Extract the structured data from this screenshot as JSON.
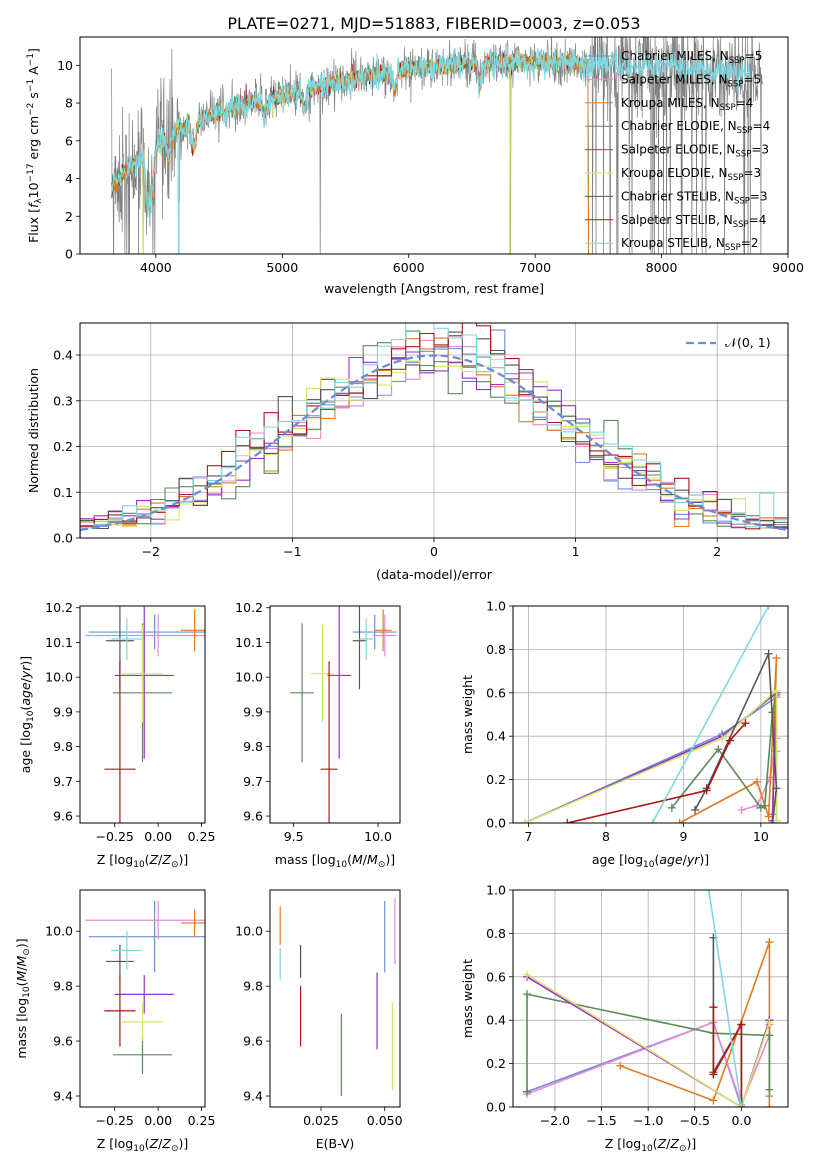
{
  "figure_title": "PLATE=0271, MJD=51883, FIBERID=0003, z=0.053",
  "colors": {
    "chabrier_miles": "#6d8fd6",
    "salpeter_miles": "#e88ad2",
    "kroupa_miles": "#e07a1f",
    "chabrier_elodie": "#5b8a5b",
    "salpeter_elodie": "#9b30c8",
    "kroupa_elodie": "#d8e36a",
    "chabrier_stelib": "#555555",
    "salpeter_stelib": "#b01515",
    "kroupa_stelib": "#7fd8e0",
    "data": "#808080",
    "normal": "#6b8fd6"
  },
  "chart_data": [
    {
      "id": "spectrum",
      "type": "line",
      "xlabel": "wavelength [Angstrom, rest frame]",
      "ylabel": "Flux [f_λ10^{-17} erg cm^{-2} s^{-1} A^{-1}]",
      "xlim": [
        3400,
        9000
      ],
      "ylim": [
        0,
        11.5
      ],
      "xticks": [
        4000,
        5000,
        6000,
        7000,
        8000,
        9000
      ],
      "yticks": [
        0,
        2,
        4,
        6,
        8,
        10
      ],
      "legend_position": "top-right",
      "legend": [
        {
          "label": "Chabrier MILES, N_SSP=5",
          "key": "chabrier_miles"
        },
        {
          "label": "Salpeter MILES, N_SSP=5",
          "key": "salpeter_miles"
        },
        {
          "label": "Kroupa MILES, N_SSP=4",
          "key": "kroupa_miles"
        },
        {
          "label": "Chabrier ELODIE, N_SSP=4",
          "key": "chabrier_elodie"
        },
        {
          "label": "Salpeter ELODIE, N_SSP=3",
          "key": "salpeter_elodie"
        },
        {
          "label": "Kroupa ELODIE, N_SSP=3",
          "key": "kroupa_elodie"
        },
        {
          "label": "Chabrier STELIB, N_SSP=3",
          "key": "chabrier_stelib"
        },
        {
          "label": "Salpeter STELIB, N_SSP=4",
          "key": "salpeter_stelib"
        },
        {
          "label": "Kroupa STELIB, N_SSP=2",
          "key": "kroupa_stelib"
        }
      ],
      "continuum": {
        "x": [
          3650,
          3800,
          3950,
          4100,
          4300,
          4600,
          5000,
          5500,
          6000,
          6500,
          7000,
          7400,
          8000,
          8600,
          8800
        ],
        "y": [
          3.6,
          4.6,
          5.4,
          6.3,
          7.0,
          7.7,
          8.4,
          9.2,
          9.8,
          10.1,
          10.2,
          10.1,
          9.9,
          9.6,
          9.5
        ]
      },
      "model_range": [
        3650,
        7420
      ],
      "stelib_range": [
        3650,
        8700
      ]
    },
    {
      "id": "residuals",
      "type": "bar",
      "xlabel": "(data-model)/error",
      "ylabel": "Normed distribution",
      "xlim": [
        -2.5,
        2.5
      ],
      "ylim": [
        0,
        0.47
      ],
      "xticks": [
        -2,
        -1,
        0,
        1,
        2
      ],
      "yticks": [
        0,
        0.1,
        0.2,
        0.3,
        0.4
      ],
      "legend_label": "𝒩(0, 1)",
      "legend_position": "top-right",
      "bin_edges": [
        -2.5,
        2.5
      ],
      "bins": 50,
      "normal_curve": {
        "mean": 0,
        "sigma": 1
      }
    },
    {
      "id": "age_vs_z",
      "type": "scatter",
      "xlabel": "Z [log10(Z/Z☉)]",
      "ylabel": "age  [log10(age/yr)]",
      "xlim": [
        -0.45,
        0.27
      ],
      "ylim": [
        9.58,
        10.205
      ],
      "xticks": [
        -0.25,
        0.0,
        0.25
      ],
      "yticks": [
        9.6,
        9.7,
        9.8,
        9.9,
        10.0,
        10.1,
        10.2
      ],
      "points": [
        {
          "key": "chabrier_miles",
          "x": -0.02,
          "y": 10.13,
          "xerr": 0.38,
          "yerr": 0.05
        },
        {
          "key": "salpeter_miles",
          "x": 0.0,
          "y": 10.12,
          "xerr": 0.42,
          "yerr": 0.06
        },
        {
          "key": "kroupa_miles",
          "x": 0.21,
          "y": 10.135,
          "xerr": 0.08,
          "yerr": 0.06
        },
        {
          "key": "chabrier_elodie",
          "x": -0.09,
          "y": 9.955,
          "xerr": 0.17,
          "yerr": 0.2
        },
        {
          "key": "salpeter_elodie",
          "x": -0.08,
          "y": 10.005,
          "xerr": 0.17,
          "yerr": 0.24
        },
        {
          "key": "kroupa_elodie",
          "x": -0.09,
          "y": 10.01,
          "xerr": 0.12,
          "yerr": 0.14
        },
        {
          "key": "chabrier_stelib",
          "x": -0.22,
          "y": 10.105,
          "xerr": 0.08,
          "yerr": 0.14
        },
        {
          "key": "salpeter_stelib",
          "x": -0.22,
          "y": 9.735,
          "xerr": 0.09,
          "yerr": 0.31
        },
        {
          "key": "kroupa_stelib",
          "x": -0.18,
          "y": 10.11,
          "xerr": 0.09,
          "yerr": 0.06
        }
      ]
    },
    {
      "id": "age_vs_mass",
      "type": "scatter",
      "xlabel": "mass [log10(M/M☉)]",
      "ylabel": "",
      "xlim": [
        9.36,
        10.13
      ],
      "ylim": [
        9.58,
        10.205
      ],
      "xticks": [
        9.5,
        10.0
      ],
      "yticks": [
        9.6,
        9.7,
        9.8,
        9.9,
        10.0,
        10.1,
        10.2
      ],
      "points": [
        {
          "key": "chabrier_miles",
          "x": 9.98,
          "y": 10.13,
          "xerr": 0.13,
          "yerr": 0.05
        },
        {
          "key": "salpeter_miles",
          "x": 10.04,
          "y": 10.12,
          "xerr": 0.07,
          "yerr": 0.06
        },
        {
          "key": "kroupa_miles",
          "x": 10.03,
          "y": 10.135,
          "xerr": 0.05,
          "yerr": 0.06
        },
        {
          "key": "chabrier_elodie",
          "x": 9.55,
          "y": 9.955,
          "xerr": 0.07,
          "yerr": 0.2
        },
        {
          "key": "salpeter_elodie",
          "x": 9.77,
          "y": 10.005,
          "xerr": 0.07,
          "yerr": 0.24
        },
        {
          "key": "kroupa_elodie",
          "x": 9.67,
          "y": 10.01,
          "xerr": 0.07,
          "yerr": 0.14
        },
        {
          "key": "chabrier_stelib",
          "x": 9.89,
          "y": 10.105,
          "xerr": 0.04,
          "yerr": 0.14
        },
        {
          "key": "salpeter_stelib",
          "x": 9.71,
          "y": 9.735,
          "xerr": 0.05,
          "yerr": 0.31
        },
        {
          "key": "kroupa_stelib",
          "x": 9.93,
          "y": 10.11,
          "xerr": 0.04,
          "yerr": 0.06
        }
      ]
    },
    {
      "id": "weight_vs_age",
      "type": "line",
      "xlabel": "age  [log10(age/yr)]",
      "ylabel": "mass weight",
      "xlim": [
        6.8,
        10.35
      ],
      "ylim": [
        0,
        1.0
      ],
      "xticks": [
        7,
        8,
        9,
        10
      ],
      "yticks": [
        0.0,
        0.2,
        0.4,
        0.6,
        0.8,
        1.0
      ],
      "series": [
        {
          "key": "chabrier_miles",
          "x": [
            6.95,
            9.5,
            10.2,
            10.2
          ],
          "y": [
            0.0,
            0.41,
            0.58,
            0.01
          ]
        },
        {
          "key": "salpeter_miles",
          "x": [
            9.75,
            9.95,
            10.12,
            10.2,
            10.2
          ],
          "y": [
            0.06,
            0.08,
            0.21,
            0.39,
            0.33
          ]
        },
        {
          "key": "kroupa_miles",
          "x": [
            8.95,
            9.95,
            10.1,
            10.2,
            10.15
          ],
          "y": [
            0.0,
            0.19,
            0.03,
            0.76,
            0.04
          ]
        },
        {
          "key": "chabrier_elodie",
          "x": [
            8.85,
            9.45,
            10.0,
            10.05,
            10.15,
            10.2
          ],
          "y": [
            0.07,
            0.34,
            0.07,
            0.08,
            0.51,
            0.59
          ]
        },
        {
          "key": "salpeter_elodie",
          "x": [
            6.95,
            9.5,
            10.2,
            10.15
          ],
          "y": [
            0.0,
            0.4,
            0.6,
            0.01
          ]
        },
        {
          "key": "kroupa_elodie",
          "x": [
            6.95,
            9.5,
            10.2,
            10.2
          ],
          "y": [
            0.0,
            0.39,
            0.61,
            0.01
          ]
        },
        {
          "key": "chabrier_stelib",
          "x": [
            9.15,
            9.3,
            10.1,
            10.2,
            10.15
          ],
          "y": [
            0.06,
            0.16,
            0.78,
            0.16,
            0.0
          ]
        },
        {
          "key": "salpeter_stelib",
          "x": [
            7.5,
            9.3,
            9.6,
            9.8
          ],
          "y": [
            0.0,
            0.15,
            0.38,
            0.46
          ]
        },
        {
          "key": "kroupa_stelib",
          "x": [
            8.6,
            10.1
          ],
          "y": [
            0.0,
            1.0
          ]
        }
      ]
    },
    {
      "id": "mass_vs_z",
      "type": "scatter",
      "xlabel": "Z [log10(Z/Z☉)]",
      "ylabel": "mass [log10(M/M☉)]",
      "xlim": [
        -0.45,
        0.27
      ],
      "ylim": [
        9.36,
        10.15
      ],
      "xticks": [
        -0.25,
        0.0,
        0.25
      ],
      "yticks": [
        9.4,
        9.6,
        9.8,
        10.0
      ],
      "points": [
        {
          "key": "chabrier_miles",
          "x": -0.02,
          "y": 9.98,
          "xerr": 0.38,
          "yerr": 0.13
        },
        {
          "key": "salpeter_miles",
          "x": 0.0,
          "y": 10.04,
          "xerr": 0.42,
          "yerr": 0.07
        },
        {
          "key": "kroupa_miles",
          "x": 0.21,
          "y": 10.03,
          "xerr": 0.08,
          "yerr": 0.05
        },
        {
          "key": "chabrier_elodie",
          "x": -0.09,
          "y": 9.55,
          "xerr": 0.17,
          "yerr": 0.07
        },
        {
          "key": "salpeter_elodie",
          "x": -0.08,
          "y": 9.77,
          "xerr": 0.17,
          "yerr": 0.07
        },
        {
          "key": "kroupa_elodie",
          "x": -0.09,
          "y": 9.67,
          "xerr": 0.12,
          "yerr": 0.07
        },
        {
          "key": "chabrier_stelib",
          "x": -0.22,
          "y": 9.89,
          "xerr": 0.08,
          "yerr": 0.06
        },
        {
          "key": "salpeter_stelib",
          "x": -0.22,
          "y": 9.71,
          "xerr": 0.09,
          "yerr": 0.13
        },
        {
          "key": "kroupa_stelib",
          "x": -0.18,
          "y": 9.93,
          "xerr": 0.09,
          "yerr": 0.07
        }
      ]
    },
    {
      "id": "mass_vs_ebv",
      "type": "scatter",
      "xlabel": "E(B-V)",
      "ylabel": "",
      "xlim": [
        0.005,
        0.056
      ],
      "ylim": [
        9.36,
        10.15
      ],
      "xticks": [
        0.025,
        0.05
      ],
      "yticks": [
        9.4,
        9.6,
        9.8,
        10.0
      ],
      "points": [
        {
          "key": "chabrier_miles",
          "x": 0.05,
          "y": 9.98,
          "yerr": 0.13
        },
        {
          "key": "salpeter_miles",
          "x": 0.054,
          "y": 10.0,
          "yerr": 0.12
        },
        {
          "key": "kroupa_miles",
          "x": 0.009,
          "y": 10.02,
          "yerr": 0.07
        },
        {
          "key": "chabrier_elodie",
          "x": 0.033,
          "y": 9.55,
          "yerr": 0.15
        },
        {
          "key": "salpeter_elodie",
          "x": 0.047,
          "y": 9.71,
          "yerr": 0.14
        },
        {
          "key": "kroupa_elodie",
          "x": 0.053,
          "y": 9.58,
          "yerr": 0.16
        },
        {
          "key": "chabrier_stelib",
          "x": 0.017,
          "y": 9.89,
          "yerr": 0.06
        },
        {
          "key": "salpeter_stelib",
          "x": 0.017,
          "y": 9.69,
          "yerr": 0.11
        },
        {
          "key": "kroupa_stelib",
          "x": 0.009,
          "y": 9.88,
          "yerr": 0.06
        }
      ]
    },
    {
      "id": "weight_vs_z",
      "type": "line",
      "xlabel": "Z [log10(Z/Z☉)]",
      "ylabel": "mass weight",
      "xlim": [
        -2.45,
        0.5
      ],
      "ylim": [
        0,
        1.0
      ],
      "xticks": [
        -2.0,
        -1.5,
        -1.0,
        -0.5,
        0.0
      ],
      "yticks": [
        0.0,
        0.2,
        0.4,
        0.6,
        0.8,
        1.0
      ],
      "series": [
        {
          "key": "chabrier_miles",
          "x": [
            -2.3,
            -0.3,
            0.0,
            0.3,
            0.3
          ],
          "y": [
            0.07,
            0.39,
            0.0,
            0.4,
            0.05
          ]
        },
        {
          "key": "salpeter_miles",
          "x": [
            -2.3,
            -0.3,
            0.0,
            0.3,
            0.3
          ],
          "y": [
            0.06,
            0.39,
            0.01,
            0.33,
            0.38
          ]
        },
        {
          "key": "kroupa_miles",
          "x": [
            -1.3,
            -0.3,
            0.3,
            0.3
          ],
          "y": [
            0.19,
            0.03,
            0.76,
            0.0
          ]
        },
        {
          "key": "chabrier_elodie",
          "x": [
            -2.3,
            -2.3,
            -0.3,
            0.3,
            0.3
          ],
          "y": [
            0.07,
            0.52,
            0.34,
            0.33,
            0.08
          ]
        },
        {
          "key": "salpeter_elodie",
          "x": [
            -2.3,
            0.0,
            0.3
          ],
          "y": [
            0.6,
            0.0,
            0.4
          ]
        },
        {
          "key": "kroupa_elodie",
          "x": [
            -2.3,
            0.0,
            0.3
          ],
          "y": [
            0.61,
            0.0,
            0.39
          ]
        },
        {
          "key": "chabrier_stelib",
          "x": [
            -0.3,
            -0.3,
            0.0,
            0.0
          ],
          "y": [
            0.78,
            0.16,
            0.38,
            0.0
          ]
        },
        {
          "key": "salpeter_stelib",
          "x": [
            -0.3,
            -0.3,
            0.0,
            0.0
          ],
          "y": [
            0.46,
            0.15,
            0.38,
            0.0
          ]
        },
        {
          "key": "kroupa_stelib",
          "x": [
            -0.35,
            0.0
          ],
          "y": [
            1.0,
            0.0
          ]
        }
      ]
    }
  ]
}
